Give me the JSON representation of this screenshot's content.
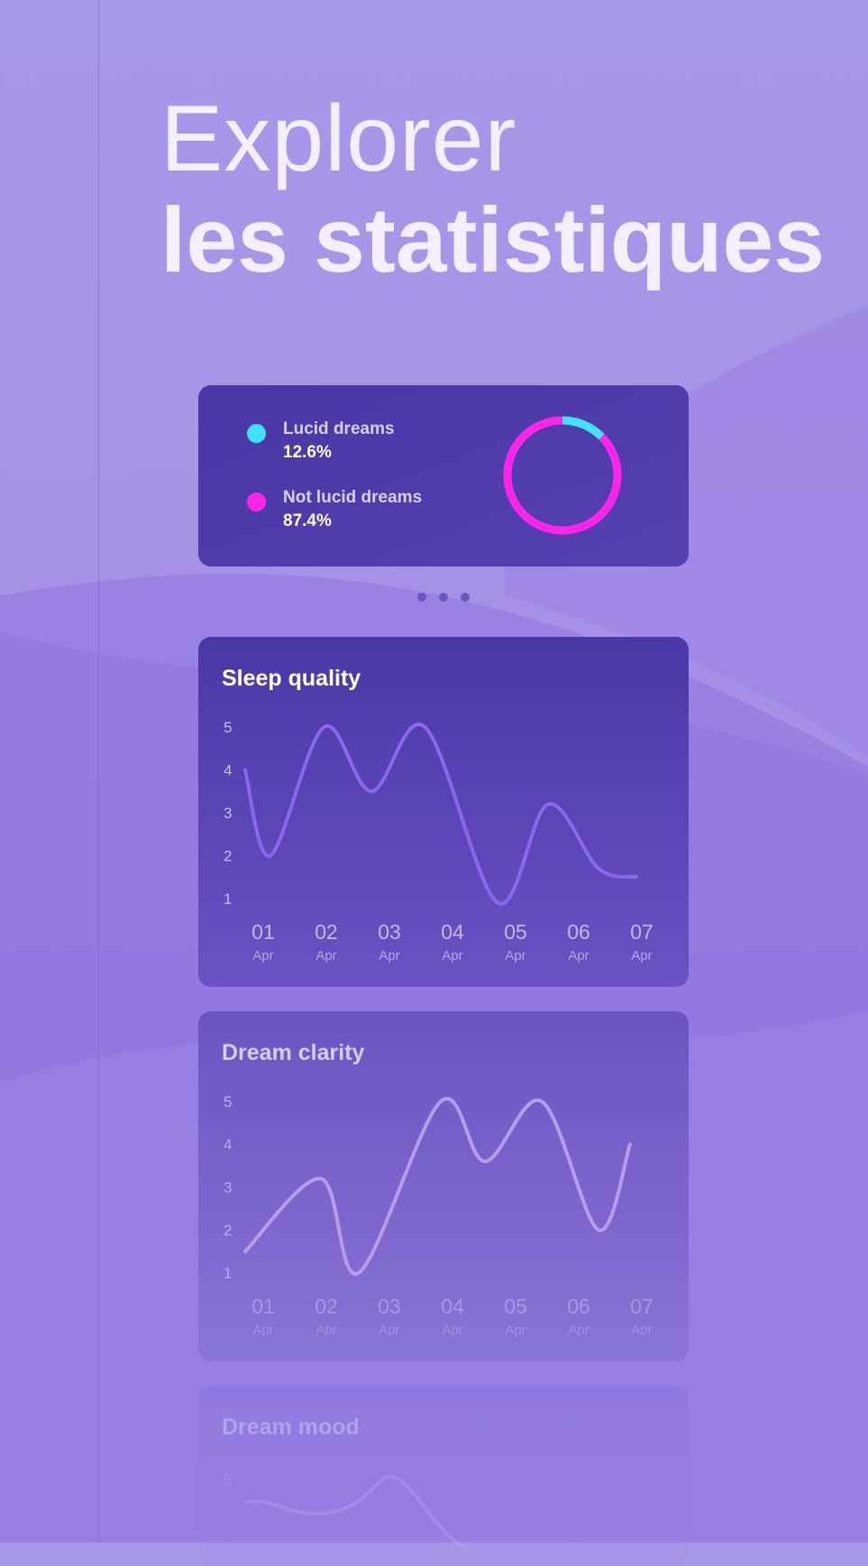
{
  "header": {
    "line1": "Explorer",
    "line2": "les statistiques"
  },
  "colors": {
    "background": "#a898e8",
    "card": "#4a36a4",
    "lucid": "#3fe3f7",
    "not_lucid": "#ff25e8",
    "sleep_line": "#8c66ee",
    "clarity_line": "#b39fe6"
  },
  "dream_summary": {
    "items": [
      {
        "label": "Lucid dreams",
        "value": "12.6%",
        "color": "#3fe3f7"
      },
      {
        "label": "Not lucid dreams",
        "value": "87.4%",
        "color": "#ff25e8"
      }
    ]
  },
  "pager": {
    "count": 3
  },
  "chart_data": [
    {
      "type": "pie",
      "categories": [
        "Lucid dreams",
        "Not lucid dreams"
      ],
      "values": [
        12.6,
        87.4
      ]
    },
    {
      "type": "line",
      "title": "Sleep quality",
      "x": [
        "01 Apr",
        "02 Apr",
        "03 Apr",
        "04 Apr",
        "05 Apr",
        "06 Apr",
        "07 Apr"
      ],
      "x_day": [
        "01",
        "02",
        "03",
        "04",
        "05",
        "06",
        "07"
      ],
      "x_month": [
        "Apr",
        "Apr",
        "Apr",
        "Apr",
        "Apr",
        "Apr",
        "Apr"
      ],
      "y_ticks": [
        1,
        2,
        3,
        4,
        5
      ],
      "ylim": [
        1,
        5
      ],
      "points": [
        [
          0,
          4.0
        ],
        [
          0.4,
          2.0
        ],
        [
          1.25,
          5.0
        ],
        [
          2.0,
          3.5
        ],
        [
          2.85,
          5.0
        ],
        [
          4.0,
          0.9
        ],
        [
          4.8,
          3.2
        ],
        [
          5.6,
          1.7
        ],
        [
          6.2,
          1.5
        ]
      ]
    },
    {
      "type": "line",
      "title": "Dream clarity",
      "x": [
        "01 Apr",
        "02 Apr",
        "03 Apr",
        "04 Apr",
        "05 Apr",
        "06 Apr",
        "07 Apr"
      ],
      "x_day": [
        "01",
        "02",
        "03",
        "04",
        "05",
        "06",
        "07"
      ],
      "x_month": [
        "Apr",
        "Apr",
        "Apr",
        "Apr",
        "Apr",
        "Apr",
        "Apr"
      ],
      "y_ticks": [
        1,
        2,
        3,
        4,
        5
      ],
      "ylim": [
        1,
        5
      ],
      "points": [
        [
          0,
          1.5
        ],
        [
          1.2,
          3.2
        ],
        [
          1.8,
          1.0
        ],
        [
          3.1,
          5.0
        ],
        [
          3.8,
          3.6
        ],
        [
          4.7,
          5.0
        ],
        [
          5.6,
          2.0
        ],
        [
          6.1,
          4.0
        ]
      ]
    },
    {
      "type": "line",
      "title": "Dream mood",
      "y_ticks": [
        5
      ]
    }
  ]
}
